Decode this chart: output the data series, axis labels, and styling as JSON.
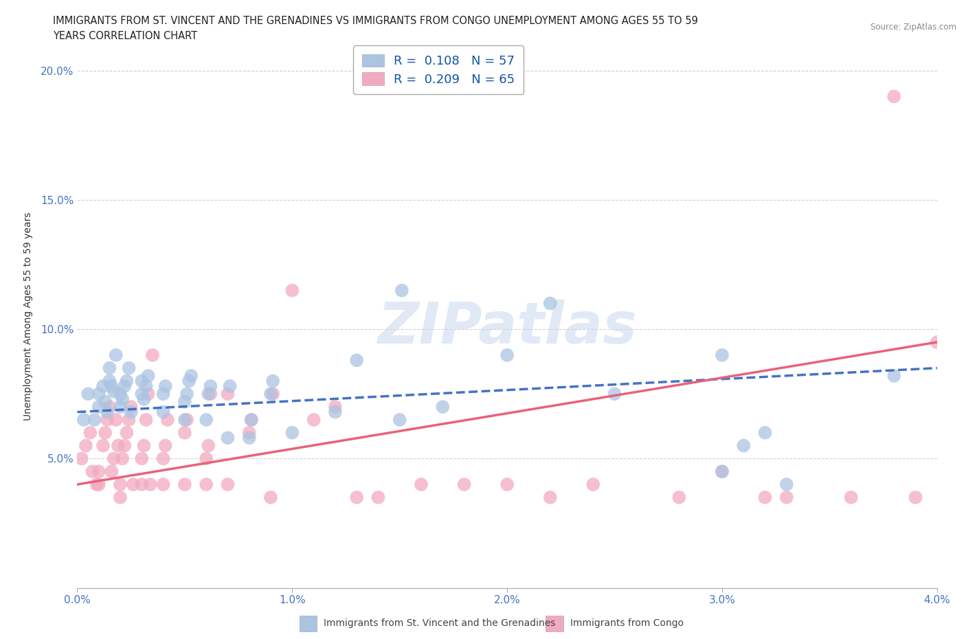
{
  "title_line1": "IMMIGRANTS FROM ST. VINCENT AND THE GRENADINES VS IMMIGRANTS FROM CONGO UNEMPLOYMENT AMONG AGES 55 TO 59",
  "title_line2": "YEARS CORRELATION CHART",
  "source": "Source: ZipAtlas.com",
  "ylabel": "Unemployment Among Ages 55 to 59 years",
  "xlim": [
    0.0,
    0.04
  ],
  "ylim": [
    0.0,
    0.21
  ],
  "xticks": [
    0.0,
    0.01,
    0.02,
    0.03,
    0.04
  ],
  "xtick_labels": [
    "0.0%",
    "1.0%",
    "2.0%",
    "3.0%",
    "4.0%"
  ],
  "yticks": [
    0.0,
    0.05,
    0.1,
    0.15,
    0.2
  ],
  "ytick_labels": [
    "",
    "5.0%",
    "10.0%",
    "15.0%",
    "20.0%"
  ],
  "blue_R": 0.108,
  "blue_N": 57,
  "pink_R": 0.209,
  "pink_N": 65,
  "blue_color": "#aac4e2",
  "pink_color": "#f2aabf",
  "blue_line_color": "#4472C4",
  "pink_line_color": "#E8627A",
  "legend_label_blue": "Immigrants from St. Vincent and the Grenadines",
  "legend_label_pink": "Immigrants from Congo",
  "tick_color": "#4472C4",
  "tick_fontsize": 11,
  "axis_label_fontsize": 10,
  "blue_x": [
    0.0003,
    0.0005,
    0.0008,
    0.001,
    0.001,
    0.0012,
    0.0013,
    0.0014,
    0.0015,
    0.0015,
    0.0016,
    0.0017,
    0.0018,
    0.002,
    0.002,
    0.0021,
    0.0022,
    0.0023,
    0.0024,
    0.0025,
    0.003,
    0.003,
    0.0031,
    0.0032,
    0.0033,
    0.004,
    0.004,
    0.0041,
    0.005,
    0.005,
    0.0051,
    0.0052,
    0.0053,
    0.006,
    0.0061,
    0.0062,
    0.007,
    0.0071,
    0.008,
    0.0081,
    0.009,
    0.0091,
    0.01,
    0.012,
    0.013,
    0.015,
    0.0151,
    0.017,
    0.02,
    0.022,
    0.025,
    0.03,
    0.033,
    0.038,
    0.03,
    0.031,
    0.032
  ],
  "blue_y": [
    0.065,
    0.075,
    0.065,
    0.07,
    0.075,
    0.078,
    0.072,
    0.068,
    0.08,
    0.085,
    0.078,
    0.076,
    0.09,
    0.07,
    0.075,
    0.073,
    0.078,
    0.08,
    0.085,
    0.068,
    0.075,
    0.08,
    0.073,
    0.078,
    0.082,
    0.068,
    0.075,
    0.078,
    0.065,
    0.072,
    0.075,
    0.08,
    0.082,
    0.065,
    0.075,
    0.078,
    0.058,
    0.078,
    0.058,
    0.065,
    0.075,
    0.08,
    0.06,
    0.068,
    0.088,
    0.065,
    0.115,
    0.07,
    0.09,
    0.11,
    0.075,
    0.09,
    0.04,
    0.082,
    0.045,
    0.055,
    0.06
  ],
  "pink_x": [
    0.0002,
    0.0004,
    0.0006,
    0.0007,
    0.0009,
    0.001,
    0.001,
    0.0012,
    0.0013,
    0.0014,
    0.0015,
    0.0016,
    0.0017,
    0.0018,
    0.0019,
    0.002,
    0.002,
    0.0021,
    0.0022,
    0.0023,
    0.0024,
    0.0025,
    0.0026,
    0.003,
    0.003,
    0.0031,
    0.0032,
    0.0033,
    0.0034,
    0.0035,
    0.004,
    0.004,
    0.0041,
    0.0042,
    0.005,
    0.005,
    0.0051,
    0.006,
    0.006,
    0.0061,
    0.0062,
    0.007,
    0.007,
    0.008,
    0.0081,
    0.009,
    0.0091,
    0.01,
    0.011,
    0.012,
    0.013,
    0.014,
    0.016,
    0.018,
    0.02,
    0.022,
    0.024,
    0.028,
    0.03,
    0.033,
    0.038,
    0.039,
    0.032,
    0.036,
    0.04
  ],
  "pink_y": [
    0.05,
    0.055,
    0.06,
    0.045,
    0.04,
    0.04,
    0.045,
    0.055,
    0.06,
    0.065,
    0.07,
    0.045,
    0.05,
    0.065,
    0.055,
    0.035,
    0.04,
    0.05,
    0.055,
    0.06,
    0.065,
    0.07,
    0.04,
    0.04,
    0.05,
    0.055,
    0.065,
    0.075,
    0.04,
    0.09,
    0.04,
    0.05,
    0.055,
    0.065,
    0.04,
    0.06,
    0.065,
    0.04,
    0.05,
    0.055,
    0.075,
    0.04,
    0.075,
    0.06,
    0.065,
    0.035,
    0.075,
    0.115,
    0.065,
    0.07,
    0.035,
    0.035,
    0.04,
    0.04,
    0.04,
    0.035,
    0.04,
    0.035,
    0.045,
    0.035,
    0.19,
    0.035,
    0.035,
    0.035,
    0.095
  ],
  "blue_trend_x0": 0.0,
  "blue_trend_y0": 0.068,
  "blue_trend_x1": 0.04,
  "blue_trend_y1": 0.085,
  "pink_trend_x0": 0.0,
  "pink_trend_y0": 0.04,
  "pink_trend_x1": 0.04,
  "pink_trend_y1": 0.095
}
